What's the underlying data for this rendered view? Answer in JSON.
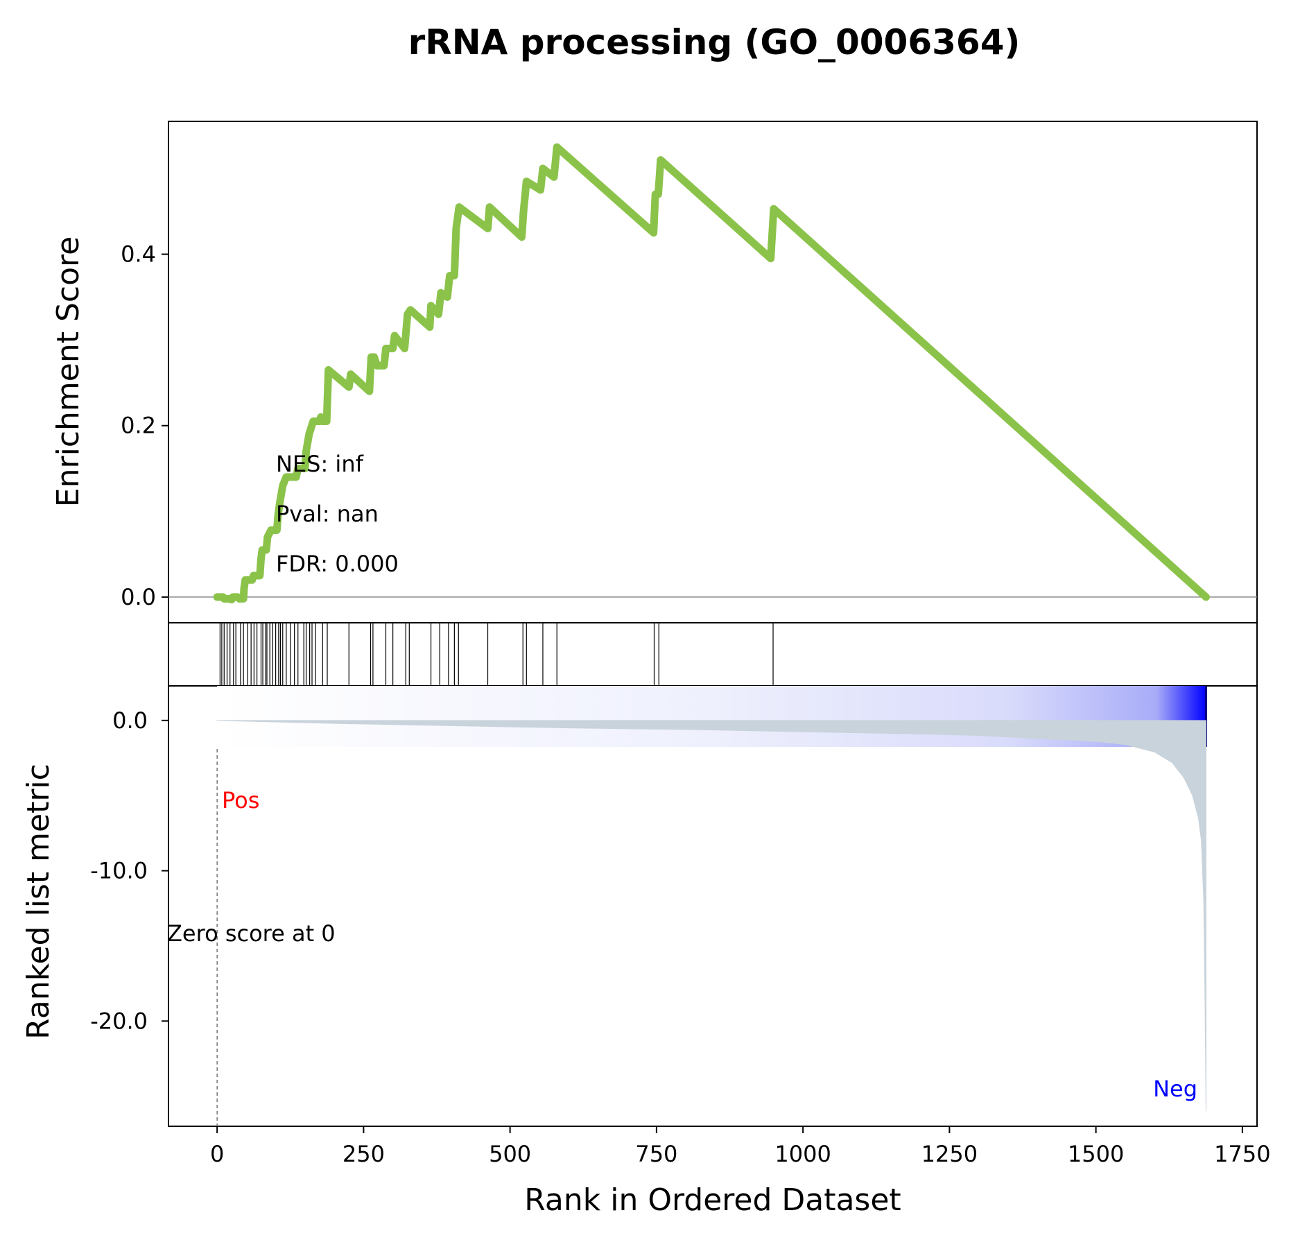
{
  "chart_data": {
    "type": "line",
    "title": "rRNA processing (GO_0006364)",
    "stats": {
      "nes": "NES: inf",
      "pval": "Pval: nan",
      "fdr": "FDR: 0.000"
    },
    "enrichment_panel": {
      "ylabel": "Enrichment Score",
      "yticks": [
        0.0,
        0.2,
        0.4
      ],
      "ytick_labels": [
        "0.0",
        "0.2",
        "0.4"
      ],
      "ylim": [
        -0.03,
        0.555
      ],
      "line_color": "#8bc34a",
      "running_es": [
        [
          0,
          0.0
        ],
        [
          10,
          0.0
        ],
        [
          12,
          -0.002
        ],
        [
          15,
          -0.002
        ],
        [
          20,
          -0.002
        ],
        [
          25,
          -0.003
        ],
        [
          27,
          0.0
        ],
        [
          35,
          0.0
        ],
        [
          38,
          -0.002
        ],
        [
          45,
          -0.002
        ],
        [
          46,
          0.01
        ],
        [
          48,
          0.02
        ],
        [
          60,
          0.02
        ],
        [
          62,
          0.025
        ],
        [
          73,
          0.025
        ],
        [
          75,
          0.045
        ],
        [
          77,
          0.055
        ],
        [
          84,
          0.055
        ],
        [
          86,
          0.07
        ],
        [
          92,
          0.078
        ],
        [
          102,
          0.078
        ],
        [
          104,
          0.095
        ],
        [
          107,
          0.11
        ],
        [
          112,
          0.13
        ],
        [
          118,
          0.14
        ],
        [
          135,
          0.14
        ],
        [
          138,
          0.15
        ],
        [
          150,
          0.15
        ],
        [
          152,
          0.17
        ],
        [
          157,
          0.19
        ],
        [
          164,
          0.205
        ],
        [
          175,
          0.205
        ],
        [
          177,
          0.21
        ],
        [
          180,
          0.205
        ],
        [
          187,
          0.205
        ],
        [
          190,
          0.265
        ],
        [
          225,
          0.245
        ],
        [
          228,
          0.26
        ],
        [
          260,
          0.24
        ],
        [
          263,
          0.28
        ],
        [
          268,
          0.28
        ],
        [
          273,
          0.27
        ],
        [
          285,
          0.27
        ],
        [
          288,
          0.29
        ],
        [
          300,
          0.29
        ],
        [
          303,
          0.305
        ],
        [
          320,
          0.29
        ],
        [
          325,
          0.33
        ],
        [
          330,
          0.335
        ],
        [
          363,
          0.315
        ],
        [
          365,
          0.34
        ],
        [
          378,
          0.33
        ],
        [
          382,
          0.355
        ],
        [
          393,
          0.35
        ],
        [
          397,
          0.375
        ],
        [
          405,
          0.375
        ],
        [
          408,
          0.43
        ],
        [
          413,
          0.455
        ],
        [
          462,
          0.43
        ],
        [
          465,
          0.455
        ],
        [
          520,
          0.42
        ],
        [
          523,
          0.45
        ],
        [
          528,
          0.485
        ],
        [
          552,
          0.475
        ],
        [
          556,
          0.5
        ],
        [
          575,
          0.49
        ],
        [
          580,
          0.525
        ],
        [
          745,
          0.425
        ],
        [
          748,
          0.47
        ],
        [
          753,
          0.47
        ],
        [
          757,
          0.51
        ],
        [
          945,
          0.395
        ],
        [
          950,
          0.453
        ],
        [
          1688,
          0.0
        ]
      ]
    },
    "hits_panel": {
      "hit_ranks": [
        5,
        8,
        12,
        17,
        22,
        28,
        32,
        40,
        45,
        52,
        58,
        63,
        68,
        75,
        78,
        83,
        85,
        90,
        95,
        100,
        105,
        108,
        112,
        118,
        125,
        132,
        138,
        148,
        152,
        158,
        162,
        168,
        180,
        188,
        225,
        262,
        266,
        288,
        300,
        322,
        328,
        365,
        380,
        395,
        405,
        412,
        462,
        522,
        528,
        556,
        580,
        746,
        754,
        949
      ]
    },
    "metric_panel": {
      "ylabel": "Ranked list metric",
      "yticks": [
        0.0,
        -10.0,
        -20.0
      ],
      "ytick_labels": [
        "0.0",
        "-10.0",
        "-20.0"
      ],
      "ylim": [
        -27.0,
        2.3
      ],
      "fill_color": "#c9d3db",
      "colorbar_end_color": "#0000ff",
      "pos_label": "Pos",
      "neg_label": "Neg",
      "pos_color": "#ff0000",
      "neg_color": "#0000ff",
      "zero_score_label": "Zero score at 0",
      "zero_score_rank": 0,
      "metric_curve": [
        [
          0,
          0.0
        ],
        [
          200,
          -0.2
        ],
        [
          400,
          -0.35
        ],
        [
          600,
          -0.5
        ],
        [
          800,
          -0.6
        ],
        [
          1000,
          -0.75
        ],
        [
          1200,
          -0.9
        ],
        [
          1300,
          -1.0
        ],
        [
          1400,
          -1.2
        ],
        [
          1500,
          -1.4
        ],
        [
          1550,
          -1.6
        ],
        [
          1600,
          -2.1
        ],
        [
          1630,
          -2.8
        ],
        [
          1650,
          -3.8
        ],
        [
          1665,
          -5.0
        ],
        [
          1675,
          -6.5
        ],
        [
          1680,
          -8.0
        ],
        [
          1684,
          -12.0
        ],
        [
          1686,
          -18.0
        ],
        [
          1688,
          -26.0
        ]
      ]
    },
    "xaxis": {
      "label": "Rank in Ordered Dataset",
      "ticks": [
        0,
        250,
        500,
        750,
        1000,
        1250,
        1500,
        1750
      ],
      "tick_labels": [
        "0",
        "250",
        "500",
        "750",
        "1000",
        "1250",
        "1500",
        "1750"
      ],
      "xlim": [
        -83,
        1775
      ],
      "data_end": 1688
    },
    "grid": false,
    "legend": "none"
  }
}
